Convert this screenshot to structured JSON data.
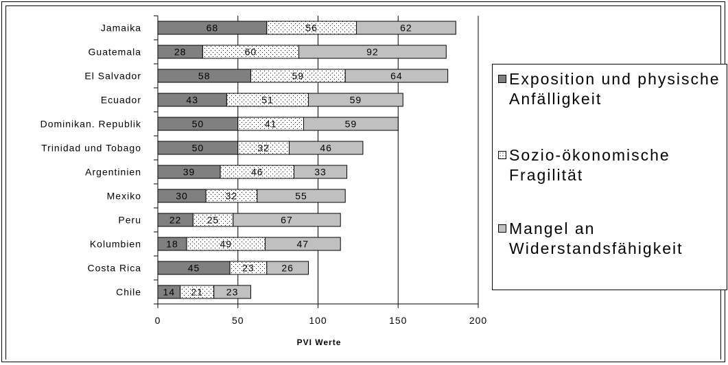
{
  "chart_data": {
    "type": "bar",
    "orientation": "horizontal",
    "stacked": true,
    "categories": [
      "Jamaika",
      "Guatemala",
      "El Salvador",
      "Ecuador",
      "Dominikan. Republik",
      "Trinidad und Tobago",
      "Argentinien",
      "Mexiko",
      "Peru",
      "Kolumbien",
      "Costa Rica",
      "Chile"
    ],
    "series": [
      {
        "name": "Exposition und physische Anfälligkeit",
        "values": [
          68,
          28,
          58,
          43,
          50,
          50,
          39,
          30,
          22,
          18,
          45,
          14
        ],
        "color": "#808080",
        "pattern": "solid"
      },
      {
        "name": "Sozio-ökonomische Fragilität",
        "values": [
          56,
          60,
          59,
          51,
          41,
          32,
          46,
          32,
          25,
          49,
          23,
          21
        ],
        "color": "#ffffff",
        "pattern": "dotted"
      },
      {
        "name": "Mangel an Widerstandsfähigkeit",
        "values": [
          62,
          92,
          64,
          59,
          59,
          46,
          33,
          55,
          67,
          47,
          26,
          23
        ],
        "color": "#c0c0c0",
        "pattern": "solid"
      }
    ],
    "xlabel": "PVI Werte",
    "ylabel": "",
    "xlim": [
      0,
      200
    ],
    "xticks": [
      0,
      50,
      100,
      150,
      200
    ],
    "grid": "vertical",
    "legend_position": "right"
  }
}
